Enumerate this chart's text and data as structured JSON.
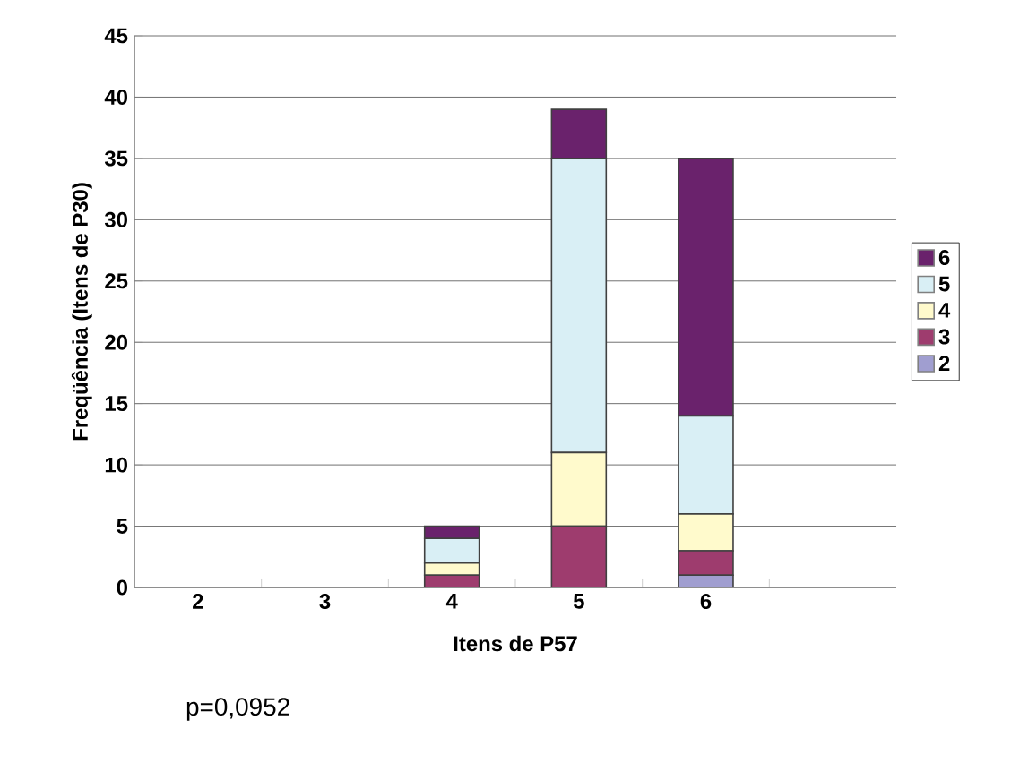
{
  "chart_data": {
    "type": "bar",
    "stacked": true,
    "xlabel": "Itens de P57",
    "ylabel": "Freqüência (Itens de P30)",
    "categories": [
      "2",
      "3",
      "4",
      "5",
      "6",
      null
    ],
    "series": [
      {
        "name": "2",
        "color": "#a09ed0",
        "values": [
          0,
          0,
          0,
          0,
          1,
          0
        ]
      },
      {
        "name": "3",
        "color": "#9e3c6e",
        "values": [
          0,
          0,
          1,
          5,
          2,
          0
        ]
      },
      {
        "name": "4",
        "color": "#fffacc",
        "values": [
          0,
          0,
          1,
          6,
          3,
          0
        ]
      },
      {
        "name": "5",
        "color": "#d9eff5",
        "values": [
          0,
          0,
          2,
          24,
          8,
          0
        ]
      },
      {
        "name": "6",
        "color": "#6a226c",
        "values": [
          0,
          0,
          1,
          4,
          21,
          0
        ]
      }
    ],
    "ylim": [
      0,
      45
    ],
    "yticks": [
      0,
      5,
      10,
      15,
      20,
      25,
      30,
      35,
      40,
      45
    ],
    "grid": "y",
    "legend": "right",
    "annotations": [
      "p=0,0952"
    ]
  }
}
